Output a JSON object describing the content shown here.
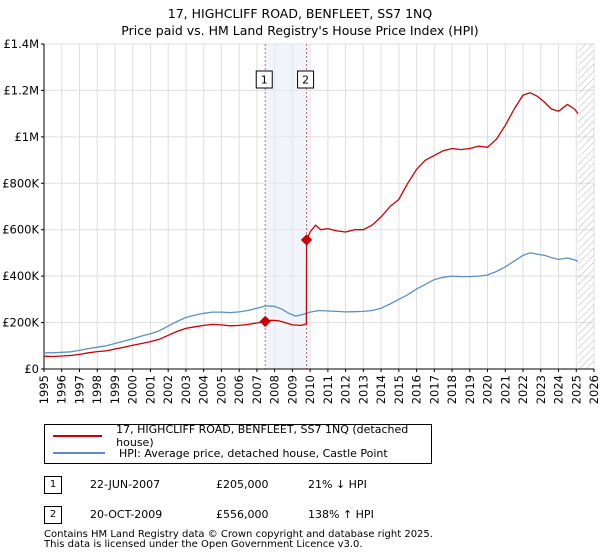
{
  "title": "17, HIGHCLIFF ROAD, BENFLEET, SS7 1NQ",
  "subtitle": "Price paid vs. HM Land Registry's House Price Index (HPI)",
  "legend": {
    "property": "17, HIGHCLIFF ROAD, BENFLEET, SS7 1NQ (detached house)",
    "hpi": "HPI: Average price, detached house, Castle Point"
  },
  "transactions": [
    {
      "num": "1",
      "date": "22-JUN-2007",
      "price": "£205,000",
      "hpi_change": "21% ↓ HPI"
    },
    {
      "num": "2",
      "date": "20-OCT-2009",
      "price": "£556,000",
      "hpi_change": "138% ↑ HPI"
    }
  ],
  "footer": {
    "line1": "Contains HM Land Registry data © Crown copyright and database right 2025.",
    "line2": "This data is licensed under the Open Government Licence v3.0."
  },
  "colors": {
    "property": "#cc0000",
    "hpi": "#5b8fcc",
    "marker_line": "#e06060",
    "grid": "#dddddd",
    "hatch": "#b0b0b0"
  },
  "chart_data": {
    "type": "line",
    "title": "17, HIGHCLIFF ROAD, BENFLEET, SS7 1NQ",
    "subtitle": "Price paid vs. HM Land Registry's House Price Index (HPI)",
    "xlabel": "",
    "ylabel": "",
    "xlim": [
      1995,
      2026
    ],
    "ylim": [
      0,
      1400000
    ],
    "y_ticks": [
      0,
      200000,
      400000,
      600000,
      800000,
      1000000,
      1200000,
      1400000
    ],
    "y_tick_labels": [
      "£0",
      "£200K",
      "£400K",
      "£600K",
      "£800K",
      "£1M",
      "£1.2M",
      "£1.4M"
    ],
    "x_ticks": [
      1995,
      1996,
      1997,
      1998,
      1999,
      2000,
      2001,
      2002,
      2003,
      2004,
      2005,
      2006,
      2007,
      2008,
      2009,
      2010,
      2011,
      2012,
      2013,
      2014,
      2015,
      2016,
      2017,
      2018,
      2019,
      2020,
      2021,
      2022,
      2023,
      2024,
      2025,
      2026
    ],
    "grid": true,
    "hatched_future_from": 2025.1,
    "series": [
      {
        "name": "17, HIGHCLIFF ROAD, BENFLEET, SS7 1NQ (detached house)",
        "color": "#cc0000",
        "x": [
          1995.0,
          1995.5,
          1996.0,
          1996.5,
          1997.0,
          1997.5,
          1998.0,
          1998.5,
          1999.0,
          1999.5,
          2000.0,
          2000.5,
          2001.0,
          2001.5,
          2002.0,
          2002.5,
          2003.0,
          2003.5,
          2004.0,
          2004.5,
          2005.0,
          2005.5,
          2006.0,
          2006.5,
          2007.0,
          2007.47,
          2007.8,
          2008.2,
          2008.6,
          2009.0,
          2009.5,
          2009.79,
          2009.8,
          2010.0,
          2010.3,
          2010.6,
          2011.0,
          2011.5,
          2012.0,
          2012.5,
          2013.0,
          2013.5,
          2014.0,
          2014.5,
          2015.0,
          2015.5,
          2016.0,
          2016.5,
          2017.0,
          2017.5,
          2018.0,
          2018.5,
          2019.0,
          2019.5,
          2020.0,
          2020.5,
          2021.0,
          2021.5,
          2022.0,
          2022.4,
          2022.8,
          2023.2,
          2023.6,
          2024.0,
          2024.5,
          2024.9,
          2025.1
        ],
        "values": [
          55000,
          54000,
          56000,
          58000,
          63000,
          70000,
          75000,
          78000,
          86000,
          94000,
          102000,
          110000,
          118000,
          128000,
          145000,
          162000,
          175000,
          182000,
          188000,
          192000,
          190000,
          186000,
          188000,
          192000,
          198000,
          205000,
          210000,
          208000,
          200000,
          190000,
          188000,
          195000,
          556000,
          590000,
          620000,
          600000,
          605000,
          595000,
          590000,
          600000,
          600000,
          620000,
          655000,
          700000,
          730000,
          800000,
          860000,
          900000,
          920000,
          940000,
          950000,
          945000,
          950000,
          960000,
          955000,
          990000,
          1050000,
          1120000,
          1180000,
          1190000,
          1175000,
          1150000,
          1120000,
          1110000,
          1140000,
          1120000,
          1100000
        ]
      },
      {
        "name": "HPI: Average price, detached house, Castle Point",
        "color": "#5b8fcc",
        "x": [
          1995.0,
          1995.5,
          1996.0,
          1996.5,
          1997.0,
          1997.5,
          1998.0,
          1998.5,
          1999.0,
          1999.5,
          2000.0,
          2000.5,
          2001.0,
          2001.5,
          2002.0,
          2002.5,
          2003.0,
          2003.5,
          2004.0,
          2004.5,
          2005.0,
          2005.5,
          2006.0,
          2006.5,
          2007.0,
          2007.5,
          2008.0,
          2008.4,
          2008.8,
          2009.2,
          2009.6,
          2010.0,
          2010.5,
          2011.0,
          2011.5,
          2012.0,
          2012.5,
          2013.0,
          2013.5,
          2014.0,
          2014.5,
          2015.0,
          2015.5,
          2016.0,
          2016.5,
          2017.0,
          2017.5,
          2018.0,
          2018.5,
          2019.0,
          2019.5,
          2020.0,
          2020.5,
          2021.0,
          2021.5,
          2022.0,
          2022.4,
          2022.8,
          2023.2,
          2023.6,
          2024.0,
          2024.5,
          2024.9,
          2025.1
        ],
        "values": [
          70000,
          70000,
          72000,
          74000,
          80000,
          88000,
          94000,
          100000,
          110000,
          120000,
          130000,
          142000,
          152000,
          165000,
          185000,
          205000,
          222000,
          232000,
          240000,
          245000,
          245000,
          243000,
          246000,
          252000,
          262000,
          272000,
          270000,
          258000,
          240000,
          228000,
          235000,
          245000,
          252000,
          250000,
          248000,
          246000,
          247000,
          248000,
          252000,
          262000,
          280000,
          300000,
          320000,
          345000,
          365000,
          385000,
          395000,
          400000,
          398000,
          398000,
          400000,
          405000,
          420000,
          440000,
          465000,
          490000,
          500000,
          495000,
          490000,
          480000,
          472000,
          478000,
          470000,
          465000
        ]
      }
    ],
    "markers": [
      {
        "label": "1",
        "x": 2007.47,
        "y": 205000
      },
      {
        "label": "2",
        "x": 2009.8,
        "y": 556000
      }
    ]
  }
}
